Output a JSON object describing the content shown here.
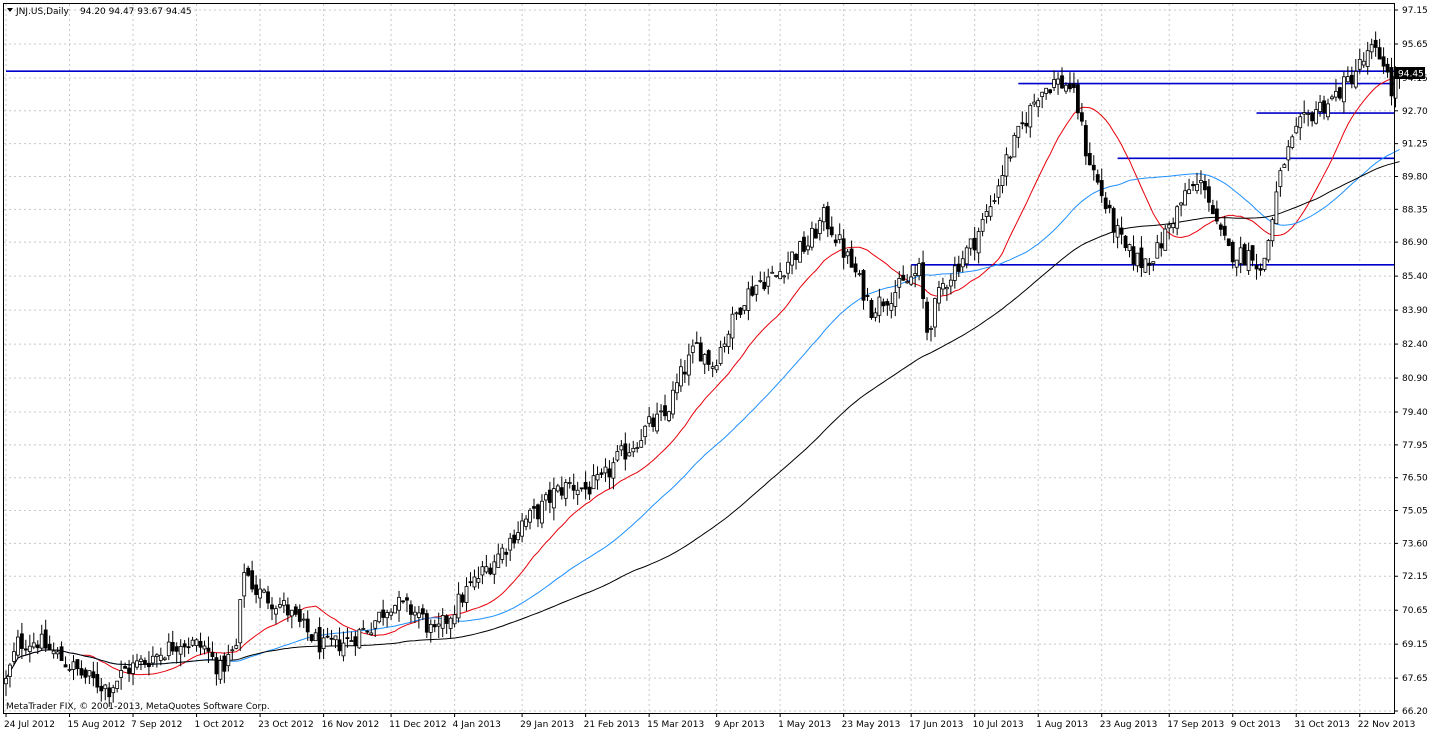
{
  "header": {
    "symbol": "JNJ.US,Daily",
    "ohlc": "94.20 94.47 93.67 94.45"
  },
  "footer": {
    "copyright": "MetaTrader FIX, © 2001-2013, MetaQuotes Software Corp."
  },
  "current_price_label": "94.45",
  "colors": {
    "bull": "#ffffff",
    "bear": "#000000",
    "candle_outline": "#000000",
    "grid": "#c8c8c8",
    "ma_fast": "#e8000b",
    "ma_mid": "#1e90ff",
    "ma_slow": "#000000",
    "hline": "#0000cc"
  },
  "chart_data": {
    "type": "candlestick",
    "y_range": [
      66.2,
      97.15
    ],
    "y_ticks": [
      "97.15",
      "95.65",
      "94.15",
      "92.70",
      "91.25",
      "89.80",
      "88.35",
      "86.90",
      "85.40",
      "83.90",
      "82.40",
      "80.90",
      "79.40",
      "77.95",
      "76.50",
      "75.05",
      "73.60",
      "72.15",
      "70.65",
      "69.15",
      "67.65",
      "66.20"
    ],
    "x_ticks": [
      {
        "label": "24 Jul 2012",
        "bar": 0
      },
      {
        "label": "15 Aug 2012",
        "bar": 16
      },
      {
        "label": "7 Sep 2012",
        "bar": 32
      },
      {
        "label": "1 Oct 2012",
        "bar": 48
      },
      {
        "label": "23 Oct 2012",
        "bar": 64
      },
      {
        "label": "16 Nov 2012",
        "bar": 80
      },
      {
        "label": "11 Dec 2012",
        "bar": 97
      },
      {
        "label": "4 Jan 2013",
        "bar": 113
      },
      {
        "label": "29 Jan 2013",
        "bar": 130
      },
      {
        "label": "21 Feb 2013",
        "bar": 146
      },
      {
        "label": "15 Mar 2013",
        "bar": 162
      },
      {
        "label": "9 Apr 2013",
        "bar": 179
      },
      {
        "label": "1 May 2013",
        "bar": 195
      },
      {
        "label": "23 May 2013",
        "bar": 211
      },
      {
        "label": "17 Jun 2013",
        "bar": 228
      },
      {
        "label": "10 Jul 2013",
        "bar": 244
      },
      {
        "label": "1 Aug 2013",
        "bar": 260
      },
      {
        "label": "23 Aug 2013",
        "bar": 276
      },
      {
        "label": "17 Sep 2013",
        "bar": 293
      },
      {
        "label": "9 Oct 2013",
        "bar": 309
      },
      {
        "label": "31 Oct 2013",
        "bar": 325
      },
      {
        "label": "22 Nov 2013",
        "bar": 341
      }
    ],
    "bar_count": 352,
    "close_anchors": [
      [
        0,
        67.5
      ],
      [
        3,
        69.2
      ],
      [
        8,
        69.3
      ],
      [
        14,
        68.5
      ],
      [
        20,
        67.7
      ],
      [
        26,
        67.2
      ],
      [
        30,
        68.0
      ],
      [
        36,
        68.5
      ],
      [
        44,
        69.3
      ],
      [
        50,
        69.0
      ],
      [
        54,
        68.0
      ],
      [
        58,
        69.0
      ],
      [
        60,
        72.5
      ],
      [
        63,
        71.5
      ],
      [
        70,
        70.8
      ],
      [
        74,
        70.0
      ],
      [
        80,
        69.0
      ],
      [
        86,
        69.3
      ],
      [
        92,
        70.0
      ],
      [
        97,
        71.0
      ],
      [
        104,
        70.5
      ],
      [
        108,
        69.5
      ],
      [
        112,
        70.5
      ],
      [
        116,
        71.5
      ],
      [
        120,
        72.3
      ],
      [
        126,
        73.5
      ],
      [
        130,
        74.5
      ],
      [
        134,
        75.0
      ],
      [
        138,
        75.8
      ],
      [
        142,
        76.2
      ],
      [
        146,
        76.0
      ],
      [
        150,
        76.3
      ],
      [
        154,
        77.3
      ],
      [
        158,
        78.0
      ],
      [
        162,
        78.8
      ],
      [
        166,
        79.2
      ],
      [
        170,
        81.0
      ],
      [
        174,
        82.3
      ],
      [
        178,
        81.5
      ],
      [
        182,
        83.0
      ],
      [
        186,
        84.5
      ],
      [
        190,
        85.2
      ],
      [
        194,
        85.4
      ],
      [
        198,
        86.3
      ],
      [
        202,
        86.8
      ],
      [
        206,
        88.0
      ],
      [
        208,
        87.5
      ],
      [
        211,
        86.5
      ],
      [
        214,
        85.5
      ],
      [
        218,
        84.0
      ],
      [
        222,
        84.5
      ],
      [
        226,
        85.0
      ],
      [
        230,
        85.6
      ],
      [
        232,
        83.0
      ],
      [
        236,
        85.0
      ],
      [
        240,
        86.0
      ],
      [
        244,
        87.0
      ],
      [
        248,
        88.5
      ],
      [
        252,
        90.5
      ],
      [
        256,
        92.0
      ],
      [
        260,
        93.5
      ],
      [
        264,
        94.0
      ],
      [
        268,
        93.8
      ],
      [
        270,
        92.8
      ],
      [
        272,
        91.0
      ],
      [
        275,
        89.5
      ],
      [
        278,
        88.0
      ],
      [
        282,
        86.5
      ],
      [
        286,
        86.0
      ],
      [
        290,
        86.5
      ],
      [
        294,
        88.0
      ],
      [
        298,
        89.2
      ],
      [
        302,
        89.5
      ],
      [
        305,
        87.5
      ],
      [
        308,
        86.5
      ],
      [
        312,
        86.3
      ],
      [
        314,
        86.5
      ],
      [
        316,
        85.5
      ],
      [
        318,
        87.0
      ],
      [
        320,
        89.0
      ],
      [
        322,
        90.5
      ],
      [
        326,
        92.0
      ],
      [
        330,
        92.8
      ],
      [
        334,
        93.2
      ],
      [
        338,
        94.0
      ],
      [
        340,
        94.5
      ],
      [
        344,
        95.3
      ],
      [
        347,
        95.0
      ],
      [
        349,
        93.5
      ],
      [
        351,
        94.45
      ]
    ],
    "moving_averages": [
      {
        "period": 20,
        "color": "ma_fast"
      },
      {
        "period": 50,
        "color": "ma_mid"
      },
      {
        "period": 100,
        "color": "ma_slow"
      }
    ],
    "horizontal_lines": [
      {
        "price": 94.45,
        "from_bar": 0
      },
      {
        "price": 93.9,
        "from_bar": 255
      },
      {
        "price": 92.6,
        "from_bar": 315
      },
      {
        "price": 90.6,
        "from_bar": 280
      },
      {
        "price": 85.9,
        "from_bar": 228
      }
    ]
  }
}
